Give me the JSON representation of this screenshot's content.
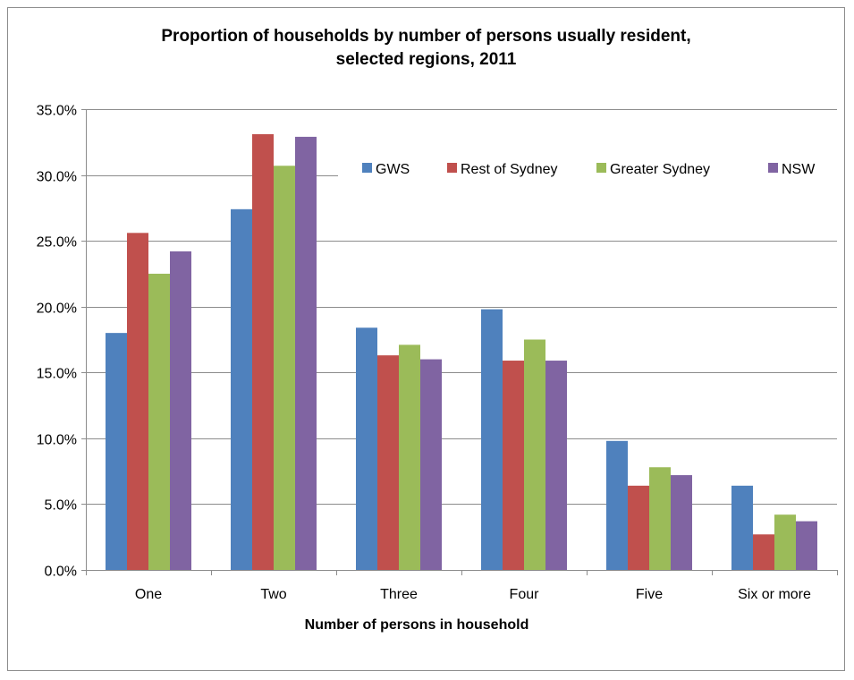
{
  "chart_data": {
    "type": "bar",
    "title_line1": "Proportion of households by number of persons usually resident,",
    "title_line2": "selected regions, 2011",
    "xlabel": "Number of persons in household",
    "ylabel": "",
    "categories": [
      "One",
      "Two",
      "Three",
      "Four",
      "Five",
      "Six or more"
    ],
    "ylim": [
      0,
      35
    ],
    "yticks": [
      "0.0%",
      "5.0%",
      "10.0%",
      "15.0%",
      "20.0%",
      "25.0%",
      "30.0%",
      "35.0%"
    ],
    "ytick_values": [
      0,
      5,
      10,
      15,
      20,
      25,
      30,
      35
    ],
    "grid": true,
    "legend_position": "top-right",
    "series": [
      {
        "name": "GWS",
        "color": "#4f81bd",
        "values": [
          18.0,
          27.4,
          18.4,
          19.8,
          9.8,
          6.4
        ]
      },
      {
        "name": "Rest of Sydney",
        "color": "#c0504d",
        "values": [
          25.6,
          33.1,
          16.3,
          15.9,
          6.4,
          2.7
        ]
      },
      {
        "name": "Greater Sydney",
        "color": "#9bbb59",
        "values": [
          22.5,
          30.7,
          17.1,
          17.5,
          7.8,
          4.2
        ]
      },
      {
        "name": "NSW",
        "color": "#8064a2",
        "values": [
          24.2,
          32.9,
          16.0,
          15.9,
          7.2,
          3.7
        ]
      }
    ]
  }
}
